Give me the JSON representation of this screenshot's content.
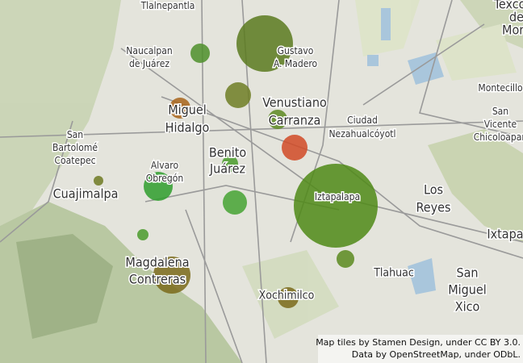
{
  "map": {
    "labels": [
      {
        "lines": [
          "Tlalnepantla"
        ]
      },
      {
        "lines": [
          "Naucalpan",
          "de Juárez"
        ]
      },
      {
        "lines": [
          "Gustavo",
          "A. Madero"
        ]
      },
      {
        "lines": [
          "Venustiano",
          "Carranza"
        ]
      },
      {
        "lines": [
          "Miguel",
          "Hidalgo"
        ]
      },
      {
        "lines": [
          "Ciudad",
          "Nezahualcóyotl"
        ]
      },
      {
        "lines": [
          "San",
          "Bartolomé",
          "Coatepec"
        ]
      },
      {
        "lines": [
          "Benito",
          "Juárez"
        ]
      },
      {
        "lines": [
          "Alvaro",
          "Obregón"
        ]
      },
      {
        "lines": [
          "Cuajimalpa"
        ]
      },
      {
        "lines": [
          "Iztapalapa"
        ]
      },
      {
        "lines": [
          "Los",
          "Reyes"
        ]
      },
      {
        "lines": [
          "Montecillo"
        ]
      },
      {
        "lines": [
          "San",
          "Vicente",
          "Chicoloapan"
        ]
      },
      {
        "lines": [
          "Texcoco",
          "de",
          "Mora"
        ]
      },
      {
        "lines": [
          "Ixtapa"
        ]
      },
      {
        "lines": [
          "Magdalena",
          "Contreras"
        ]
      },
      {
        "lines": [
          "Tlahuac"
        ]
      },
      {
        "lines": [
          "San",
          "Miguel",
          "Xico"
        ]
      },
      {
        "lines": [
          "Xochimilco"
        ]
      }
    ],
    "attribution": [
      "Map tiles by Stamen Design, under CC BY 3.0.",
      "Data by OpenStreetMap, under ODbL."
    ]
  }
}
